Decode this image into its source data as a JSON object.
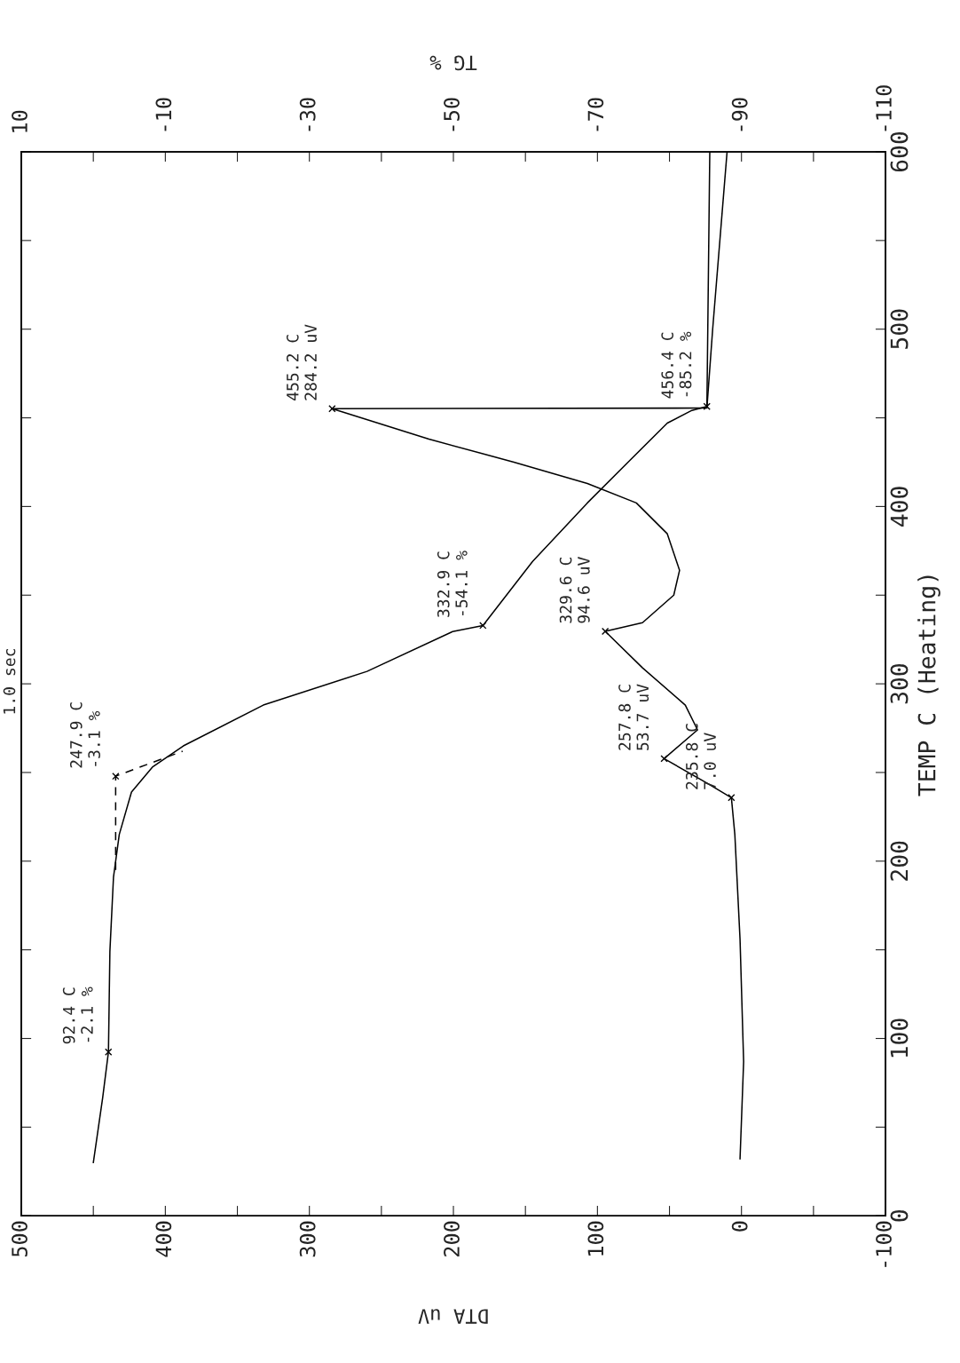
{
  "chart_data": {
    "type": "line",
    "xlabel": "DTA uV",
    "x2label": "TG %",
    "ylabel": "TEMP C (Heating)",
    "xlim": [
      500,
      -100
    ],
    "xticks": [
      500,
      {
        "value": 450,
        "label": null
      },
      400,
      {
        "value": 350,
        "label": null
      },
      300,
      {
        "value": 250,
        "label": null
      },
      200,
      {
        "value": 150,
        "label": null
      },
      100,
      {
        "value": 50,
        "label": null
      },
      0,
      {
        "value": -50,
        "label": null
      },
      -100
    ],
    "x2lim": [
      10,
      -110
    ],
    "x2ticks": [
      10,
      {
        "value": 0,
        "label": null
      },
      -10,
      {
        "value": -20,
        "label": null
      },
      -30,
      {
        "value": -40,
        "label": null
      },
      -50,
      {
        "value": -60,
        "label": null
      },
      -70,
      {
        "value": -80,
        "label": null
      },
      -90,
      {
        "value": -100,
        "label": null
      },
      -110
    ],
    "ylim": [
      0,
      600
    ],
    "yticks": [
      0,
      {
        "value": 50,
        "label": null
      },
      100,
      {
        "value": 150,
        "label": null
      },
      200,
      {
        "value": 250,
        "label": null
      },
      300,
      {
        "value": 350,
        "label": null
      },
      400,
      {
        "value": 450,
        "label": null
      },
      500,
      {
        "value": 550,
        "label": null
      },
      600
    ],
    "grid": false,
    "legend": false,
    "series": [
      {
        "color": "#000000",
        "line_style": "solid",
        "x": [
          1,
          -1.5,
          1,
          4.6,
          7.0,
          24,
          53.7,
          30.5,
          39,
          68.7,
          94.6,
          68.7,
          47,
          43,
          51.5,
          73,
          107,
          158,
          217,
          284.2,
          24,
          20,
          10
        ],
        "values": [
          32,
          87,
          156,
          215,
          235.8,
          244,
          257.8,
          274,
          288,
          309,
          329.6,
          334.5,
          350,
          364,
          384.6,
          402,
          413,
          425,
          438,
          455.2,
          455.5,
          500,
          600
        ],
        "value_labels": [
          null,
          null,
          null,
          null,
          "235.8 C\n7.0 uV",
          null,
          "257.8 C\n53.7 uV",
          null,
          null,
          null,
          "329.6 C\n94.6 uV",
          null,
          null,
          null,
          null,
          null,
          null,
          null,
          null,
          "455.2 C\n284.2 uV",
          null,
          null,
          null
        ]
      },
      {
        "axis": "x2",
        "color": "#000000",
        "line_style": "solid",
        "x": [
          0.0,
          -1.3,
          -2.1,
          -2.3,
          -2.8,
          -3.6,
          -5.3,
          -8.2,
          -12.5,
          -23.6,
          -38.0,
          -49.9,
          -54.1,
          -61.0,
          -68.6,
          -74.5,
          -79.7,
          -83.0,
          -85.2,
          -85.6
        ],
        "values": [
          30,
          66.6,
          92.4,
          149,
          191,
          215,
          239,
          253,
          265,
          288,
          307,
          329.5,
          332.9,
          369,
          402,
          426,
          447,
          454,
          456.4,
          600
        ],
        "value_labels": [
          null,
          null,
          "92.4 C\n-2.1 %",
          null,
          null,
          null,
          null,
          null,
          null,
          null,
          null,
          null,
          "332.9 C\n-54.1 %",
          null,
          null,
          null,
          null,
          null,
          "456.4 C\n-85.2 %",
          null
        ]
      },
      {
        "axis": "x2",
        "color": "#000000",
        "line_style": "dashed",
        "x": [
          -3.1,
          -3.1,
          -12.4
        ],
        "values": [
          195,
          247.9,
          262
        ],
        "value_labels": [
          null,
          "247.9 C\n-3.1 %",
          null
        ]
      }
    ],
    "annotations": [
      "1.0 sec"
    ]
  }
}
